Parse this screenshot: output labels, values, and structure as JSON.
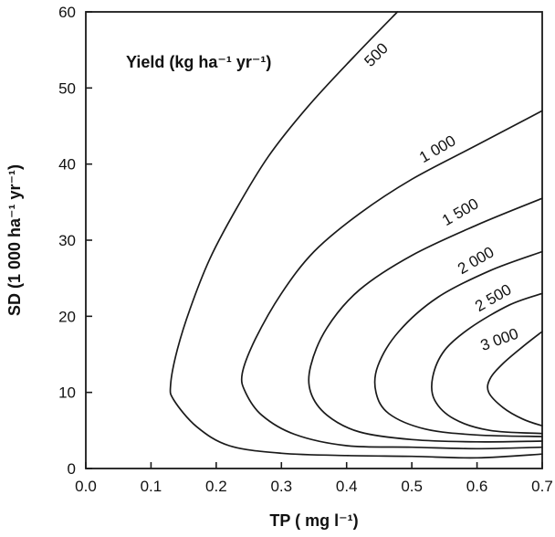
{
  "chart_data": {
    "type": "contour",
    "title": "Yield (kg ha⁻¹ yr⁻¹)",
    "xlabel": "TP ( mg l⁻¹)",
    "ylabel": "SD (1 000 ha⁻¹ yr⁻¹)",
    "xlim": [
      0.0,
      0.7
    ],
    "ylim": [
      0,
      60
    ],
    "xticks": [
      "0.0",
      "0.1",
      "0.2",
      "0.3",
      "0.4",
      "0.5",
      "0.6",
      "0.7"
    ],
    "yticks": [
      "0",
      "10",
      "20",
      "30",
      "40",
      "50",
      "60"
    ],
    "grid": false,
    "series": [
      {
        "name": "500",
        "points": [
          [
            0.7,
            1.9
          ],
          [
            0.6,
            1.4
          ],
          [
            0.5,
            1.6
          ],
          [
            0.4,
            1.7
          ],
          [
            0.3,
            2.0
          ],
          [
            0.22,
            3.0
          ],
          [
            0.17,
            5.5
          ],
          [
            0.135,
            9.0
          ],
          [
            0.13,
            11.0
          ],
          [
            0.14,
            15.5
          ],
          [
            0.16,
            21.0
          ],
          [
            0.19,
            27.5
          ],
          [
            0.23,
            34.0
          ],
          [
            0.28,
            41.0
          ],
          [
            0.34,
            47.5
          ],
          [
            0.41,
            54.0
          ],
          [
            0.478,
            60.0
          ]
        ]
      },
      {
        "name": "1 000",
        "points": [
          [
            0.7,
            2.8
          ],
          [
            0.6,
            2.6
          ],
          [
            0.5,
            2.8
          ],
          [
            0.4,
            3.0
          ],
          [
            0.32,
            4.5
          ],
          [
            0.27,
            7.0
          ],
          [
            0.245,
            10.0
          ],
          [
            0.24,
            12.5
          ],
          [
            0.26,
            17.0
          ],
          [
            0.3,
            23.0
          ],
          [
            0.35,
            28.5
          ],
          [
            0.42,
            33.5
          ],
          [
            0.5,
            38.0
          ],
          [
            0.6,
            42.5
          ],
          [
            0.7,
            47.0
          ]
        ]
      },
      {
        "name": "1 500",
        "points": [
          [
            0.7,
            3.6
          ],
          [
            0.6,
            3.5
          ],
          [
            0.5,
            3.8
          ],
          [
            0.42,
            4.8
          ],
          [
            0.37,
            7.0
          ],
          [
            0.345,
            10.0
          ],
          [
            0.345,
            13.5
          ],
          [
            0.37,
            18.5
          ],
          [
            0.42,
            23.5
          ],
          [
            0.5,
            28.0
          ],
          [
            0.6,
            32.0
          ],
          [
            0.7,
            35.5
          ]
        ]
      },
      {
        "name": "2 000",
        "points": [
          [
            0.7,
            4.2
          ],
          [
            0.6,
            4.4
          ],
          [
            0.52,
            5.2
          ],
          [
            0.465,
            7.2
          ],
          [
            0.445,
            10.0
          ],
          [
            0.448,
            13.5
          ],
          [
            0.48,
            18.0
          ],
          [
            0.54,
            22.5
          ],
          [
            0.62,
            26.0
          ],
          [
            0.7,
            28.5
          ]
        ]
      },
      {
        "name": "2 500",
        "points": [
          [
            0.7,
            4.6
          ],
          [
            0.62,
            5.0
          ],
          [
            0.565,
            6.5
          ],
          [
            0.535,
            9.0
          ],
          [
            0.532,
            12.0
          ],
          [
            0.55,
            15.5
          ],
          [
            0.59,
            18.5
          ],
          [
            0.65,
            21.5
          ],
          [
            0.7,
            23.0
          ]
        ]
      },
      {
        "name": "3 000",
        "points": [
          [
            0.7,
            5.6
          ],
          [
            0.67,
            6.5
          ],
          [
            0.64,
            8.0
          ],
          [
            0.618,
            10.0
          ],
          [
            0.62,
            11.8
          ],
          [
            0.64,
            13.8
          ],
          [
            0.67,
            16.0
          ],
          [
            0.7,
            18.0
          ]
        ]
      }
    ]
  }
}
